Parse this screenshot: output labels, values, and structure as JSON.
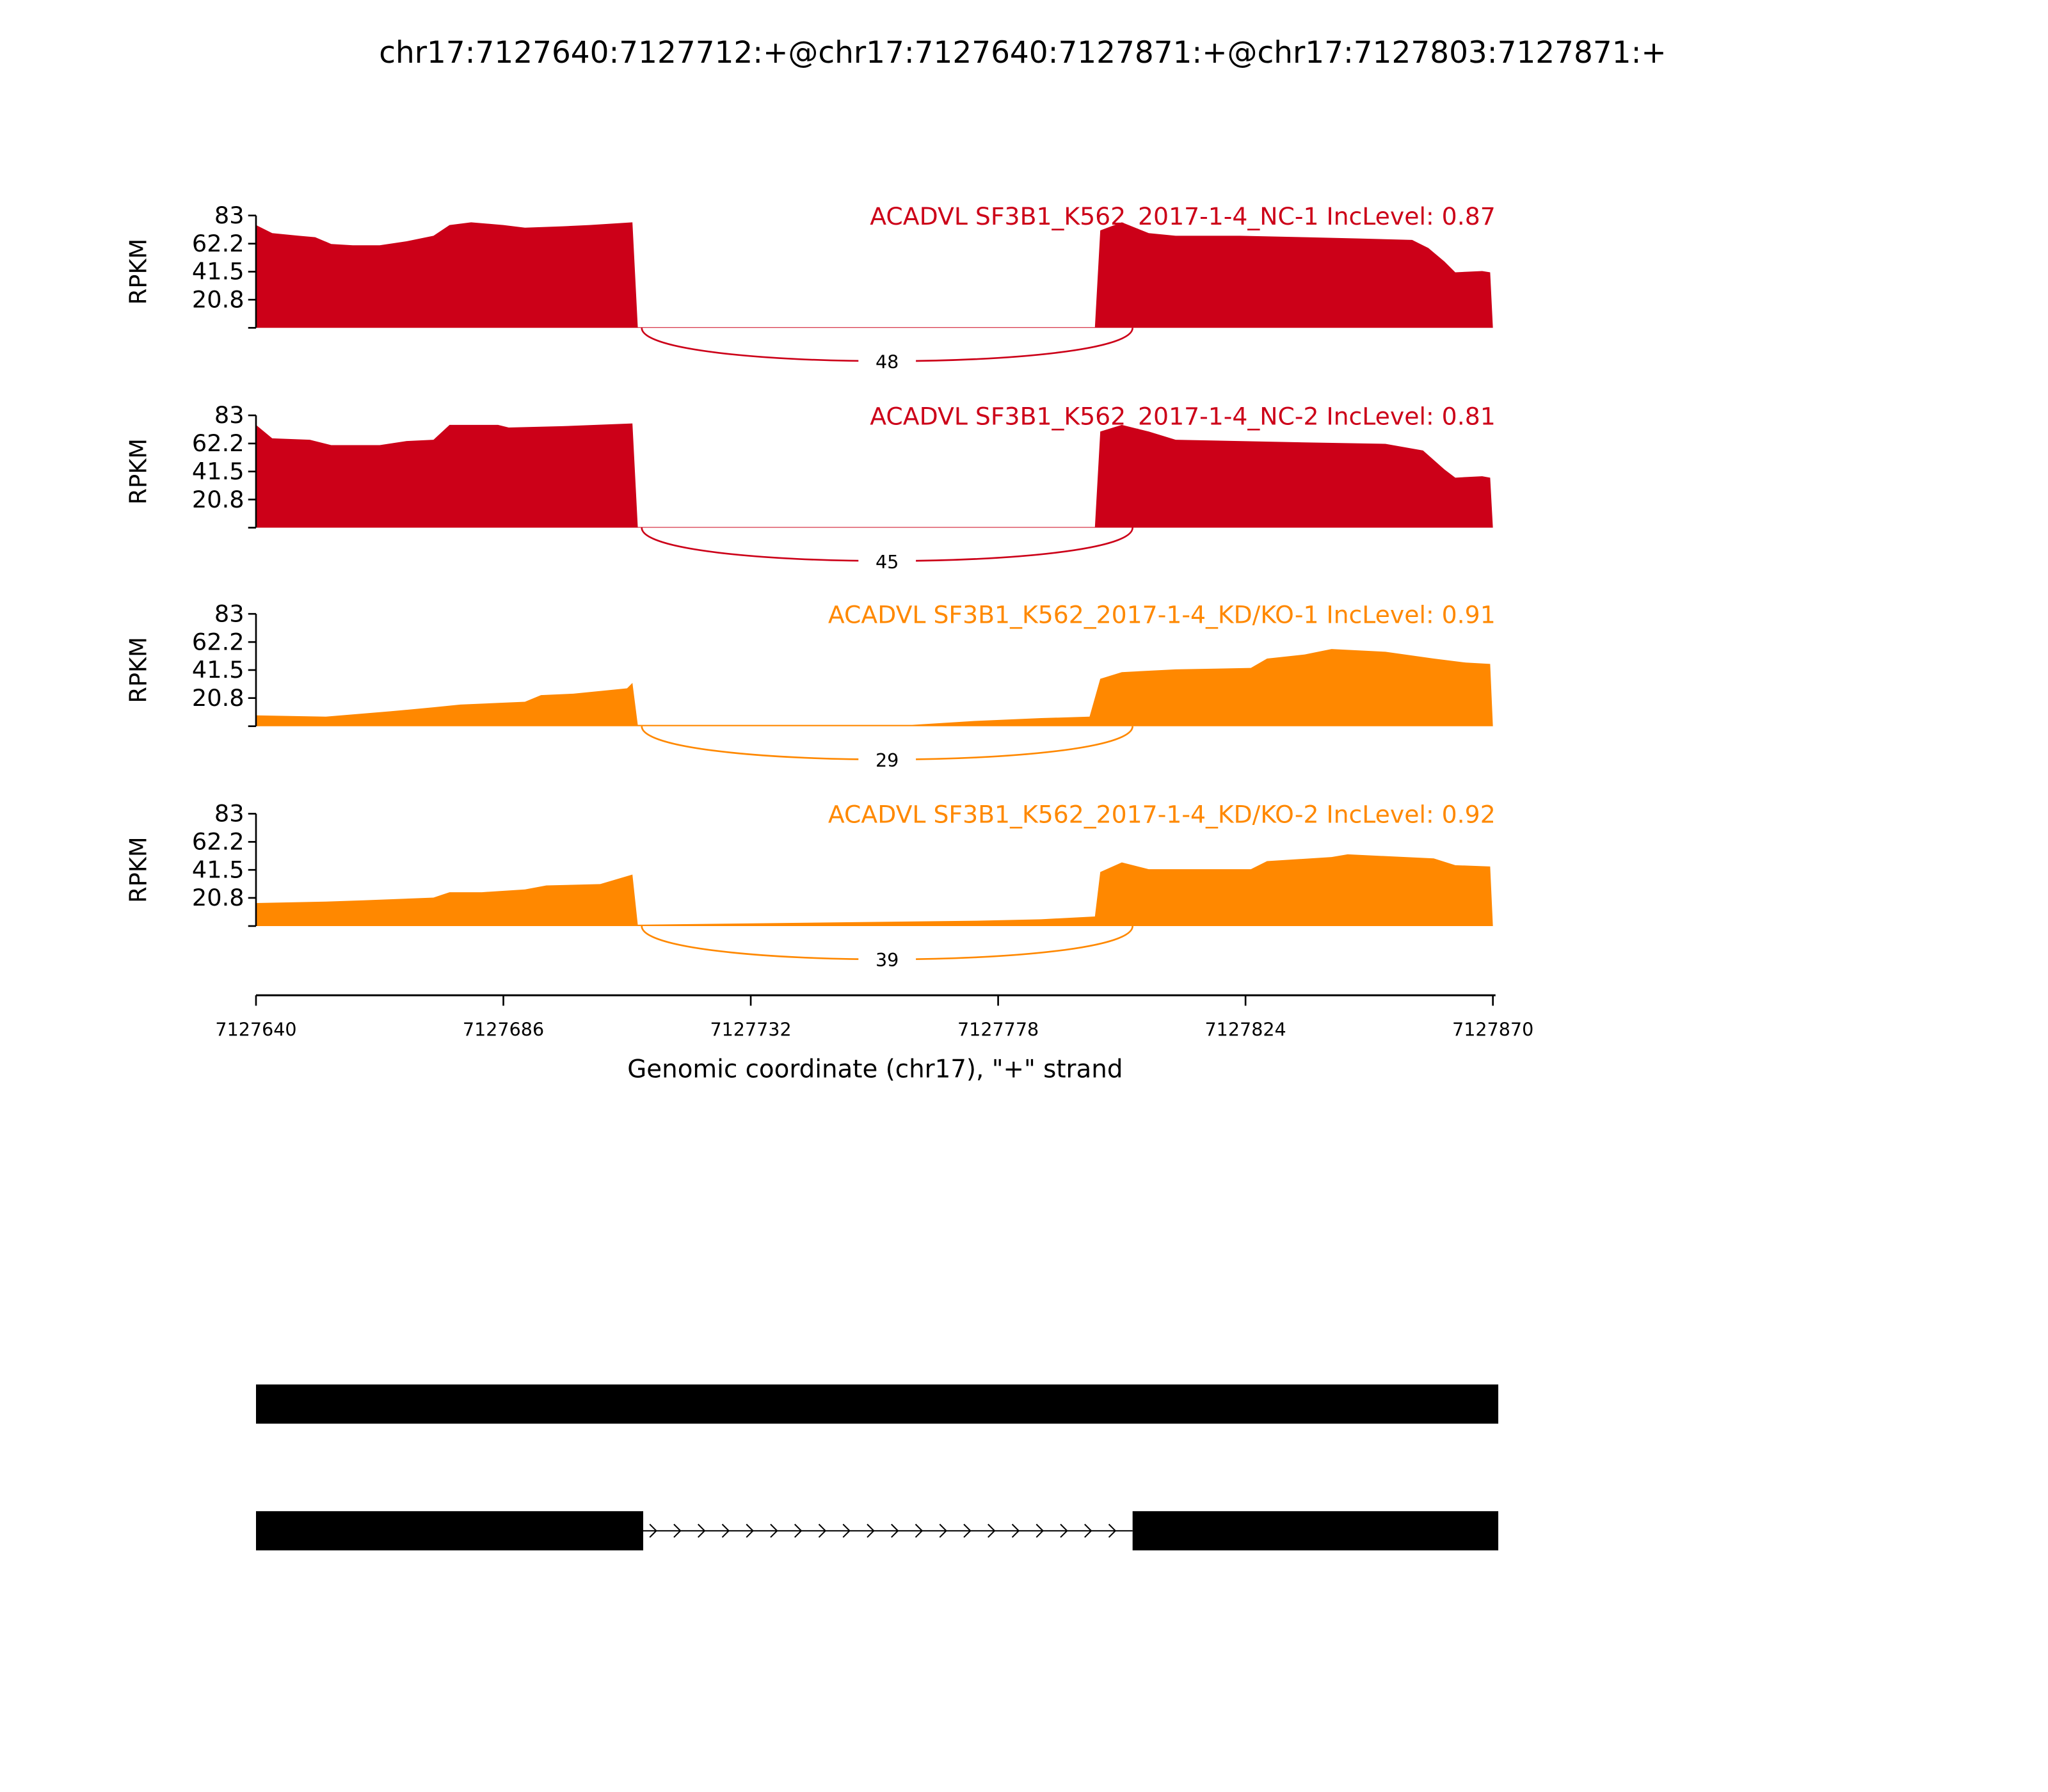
{
  "chart_data": {
    "type": "area",
    "subtype": "sashimi",
    "title": "chr17:7127640:7127712:+@chr17:7127640:7127871:+@chr17:7127803:7127871:+",
    "xlabel": "Genomic coordinate (chr17), \"+\" strand",
    "ylabel": "RPKM",
    "xlim": [
      7127640,
      7127870
    ],
    "ylim": [
      0,
      83
    ],
    "yticks": [
      "83",
      "62.2",
      "41.5",
      "20.8"
    ],
    "ytick_values": [
      83,
      62.2,
      41.5,
      20.8
    ],
    "xticks": [
      "7127640",
      "7127686",
      "7127732",
      "7127778",
      "7127824",
      "7127870"
    ],
    "xtick_values": [
      7127640,
      7127686,
      7127732,
      7127778,
      7127824,
      7127870
    ],
    "colors": {
      "nc": "#cc0018",
      "kd": "#ff8800"
    },
    "series": [
      {
        "name": "ACADVL SF3B1_K562_2017-1-4_NC-1 IncLevel: 0.87",
        "color": "#cc0018",
        "junction": {
          "start": 7127711,
          "end": 7127803,
          "count": "48"
        },
        "coverage": [
          [
            7127640,
            76
          ],
          [
            7127643,
            70
          ],
          [
            7127648,
            68
          ],
          [
            7127651,
            67
          ],
          [
            7127654,
            62
          ],
          [
            7127658,
            61
          ],
          [
            7127663,
            61
          ],
          [
            7127668,
            64
          ],
          [
            7127673,
            68
          ],
          [
            7127676,
            76
          ],
          [
            7127680,
            78
          ],
          [
            7127686,
            76
          ],
          [
            7127690,
            74
          ],
          [
            7127697,
            75
          ],
          [
            7127702,
            76
          ],
          [
            7127710,
            78
          ],
          [
            7127711,
            0.5
          ],
          [
            7127796,
            0.5
          ],
          [
            7127797,
            72
          ],
          [
            7127801,
            78
          ],
          [
            7127806,
            70
          ],
          [
            7127811,
            68
          ],
          [
            7127823,
            68
          ],
          [
            7127835,
            67
          ],
          [
            7127845,
            66
          ],
          [
            7127855,
            65
          ],
          [
            7127858,
            59
          ],
          [
            7127861,
            49
          ],
          [
            7127863,
            41
          ],
          [
            7127868,
            42
          ],
          [
            7127869.5,
            41
          ],
          [
            7127870,
            0
          ]
        ]
      },
      {
        "name": "ACADVL SF3B1_K562_2017-1-4_NC-2 IncLevel: 0.81",
        "color": "#cc0018",
        "junction": {
          "start": 7127711,
          "end": 7127803,
          "count": "45"
        },
        "coverage": [
          [
            7127640,
            76
          ],
          [
            7127643,
            66
          ],
          [
            7127650,
            65
          ],
          [
            7127654,
            61
          ],
          [
            7127663,
            61
          ],
          [
            7127668,
            64
          ],
          [
            7127673,
            65
          ],
          [
            7127676,
            76
          ],
          [
            7127685,
            76
          ],
          [
            7127687,
            74
          ],
          [
            7127697,
            75
          ],
          [
            7127710,
            77
          ],
          [
            7127711,
            0.5
          ],
          [
            7127796,
            0.5
          ],
          [
            7127797,
            71
          ],
          [
            7127801,
            76
          ],
          [
            7127806,
            71
          ],
          [
            7127811,
            65
          ],
          [
            7127835,
            63
          ],
          [
            7127850,
            62
          ],
          [
            7127857,
            57
          ],
          [
            7127861,
            43
          ],
          [
            7127863,
            37
          ],
          [
            7127868,
            38
          ],
          [
            7127869.5,
            37
          ],
          [
            7127870,
            0
          ]
        ]
      },
      {
        "name": "ACADVL SF3B1_K562_2017-1-4_KD/KO-1 IncLevel: 0.91",
        "color": "#ff8800",
        "junction": {
          "start": 7127711,
          "end": 7127803,
          "count": "29"
        },
        "coverage": [
          [
            7127640,
            8
          ],
          [
            7127653,
            7
          ],
          [
            7127665,
            11
          ],
          [
            7127673,
            14
          ],
          [
            7127678,
            16
          ],
          [
            7127690,
            18
          ],
          [
            7127693,
            23
          ],
          [
            7127699,
            24
          ],
          [
            7127709,
            28
          ],
          [
            7127710,
            32
          ],
          [
            7127711,
            1
          ],
          [
            7127762,
            1
          ],
          [
            7127774,
            4
          ],
          [
            7127786,
            6
          ],
          [
            7127795,
            7
          ],
          [
            7127797,
            35
          ],
          [
            7127801,
            40
          ],
          [
            7127811,
            42
          ],
          [
            7127825,
            43
          ],
          [
            7127828,
            50
          ],
          [
            7127835,
            53
          ],
          [
            7127840,
            57
          ],
          [
            7127850,
            55
          ],
          [
            7127859,
            50
          ],
          [
            7127865,
            47
          ],
          [
            7127869.5,
            46
          ],
          [
            7127870,
            0
          ]
        ]
      },
      {
        "name": "ACADVL SF3B1_K562_2017-1-4_KD/KO-2 IncLevel: 0.92",
        "color": "#ff8800",
        "junction": {
          "start": 7127711,
          "end": 7127803,
          "count": "39"
        },
        "coverage": [
          [
            7127640,
            17
          ],
          [
            7127653,
            18
          ],
          [
            7127660,
            19
          ],
          [
            7127673,
            21
          ],
          [
            7127676,
            25
          ],
          [
            7127682,
            25
          ],
          [
            7127690,
            27
          ],
          [
            7127694,
            30
          ],
          [
            7127704,
            31
          ],
          [
            7127710,
            38
          ],
          [
            7127711,
            1
          ],
          [
            7127774,
            4
          ],
          [
            7127786,
            5
          ],
          [
            7127796,
            7
          ],
          [
            7127797,
            40
          ],
          [
            7127801,
            47
          ],
          [
            7127806,
            42
          ],
          [
            7127825,
            42
          ],
          [
            7127828,
            48
          ],
          [
            7127840,
            51
          ],
          [
            7127843,
            53
          ],
          [
            7127859,
            50
          ],
          [
            7127863,
            45
          ],
          [
            7127869.5,
            44
          ],
          [
            7127870,
            0
          ]
        ]
      }
    ],
    "gene_model": [
      {
        "exons": [
          [
            7127640,
            7127871
          ]
        ]
      },
      {
        "exons": [
          [
            7127640,
            7127712
          ],
          [
            7127803,
            7127871
          ]
        ],
        "intron_strand": "+"
      }
    ]
  }
}
